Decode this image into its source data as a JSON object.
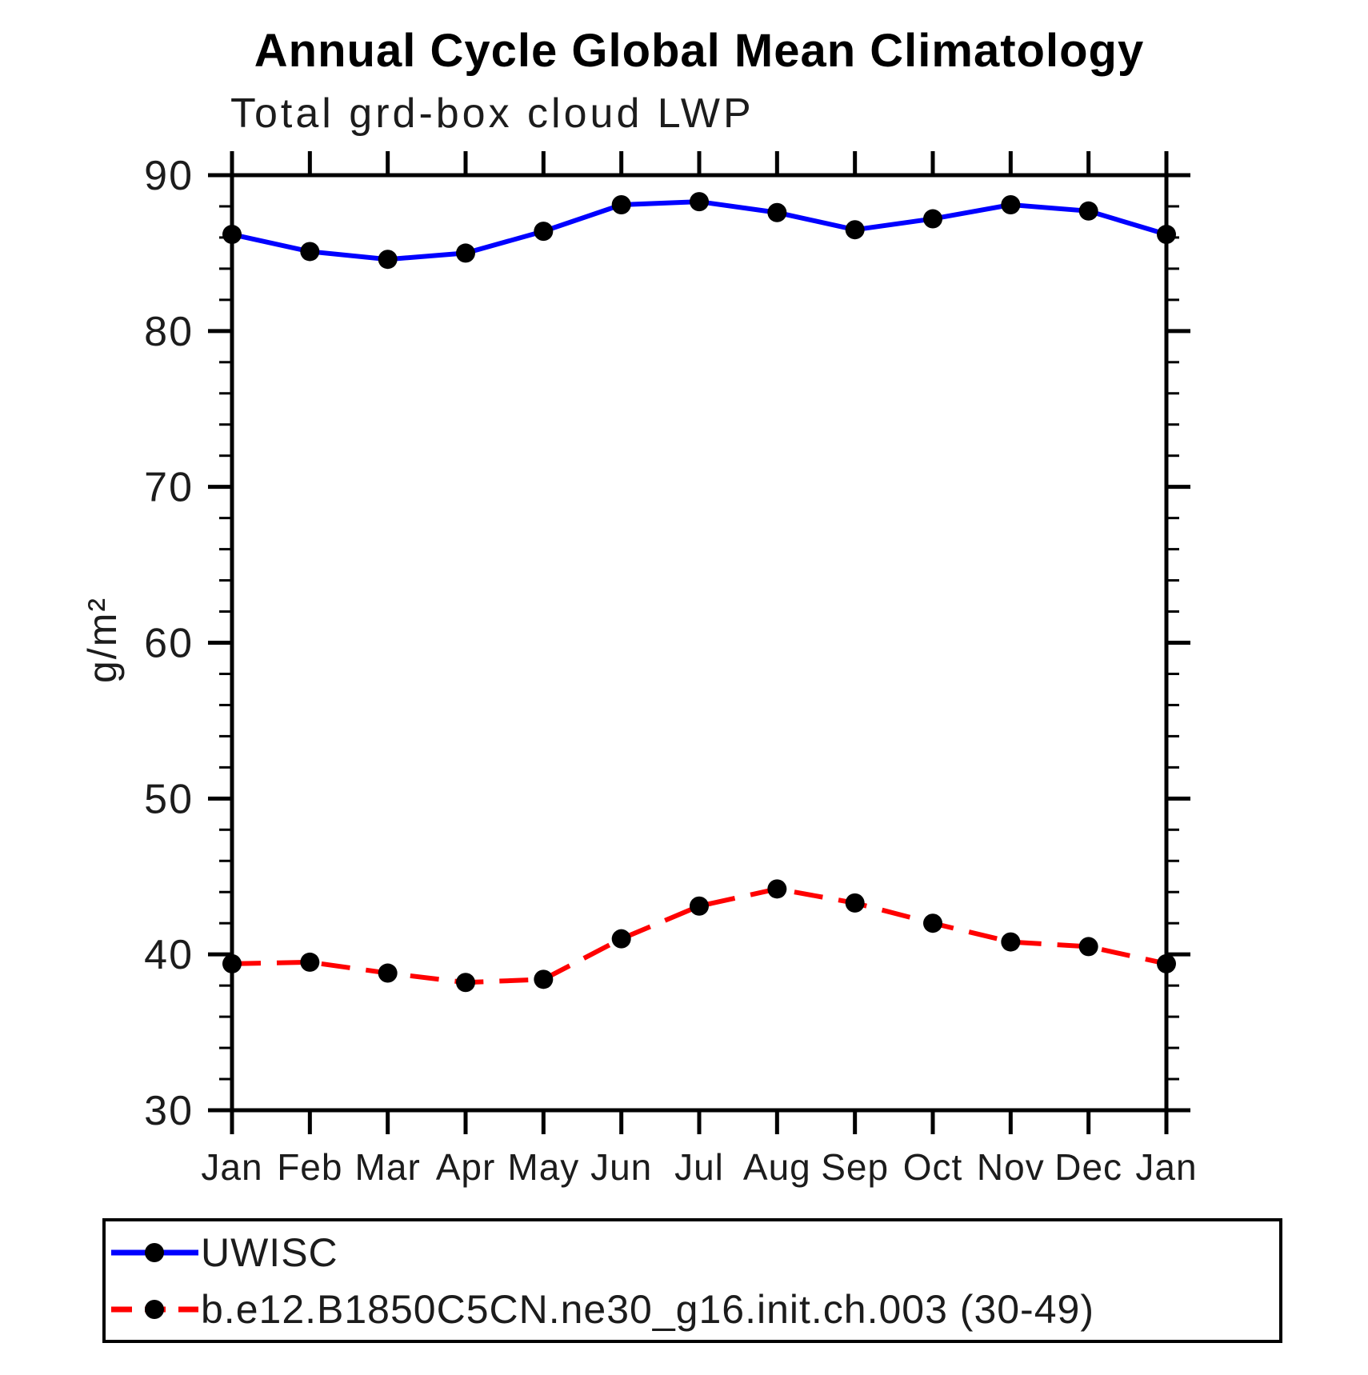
{
  "chart_data": {
    "type": "line",
    "title": "Annual Cycle Global Mean Climatology",
    "subtitle": "Total grd-box cloud LWP",
    "xlabel": "",
    "ylabel": "g/m²",
    "categories": [
      "Jan",
      "Feb",
      "Mar",
      "Apr",
      "May",
      "Jun",
      "Jul",
      "Aug",
      "Sep",
      "Oct",
      "Nov",
      "Dec",
      "Jan"
    ],
    "ylim": [
      30,
      90
    ],
    "y_major_step": 10,
    "y_minor_step": 2,
    "y_tick_labels": [
      "30",
      "40",
      "50",
      "60",
      "70",
      "80",
      "90"
    ],
    "grid": "off",
    "legend_position": "bottom",
    "series": [
      {
        "name": "UWISC",
        "color": "#0000ff",
        "style": "solid",
        "marker": "circle",
        "marker_color": "#000000",
        "values": [
          86.2,
          85.1,
          84.6,
          85.0,
          86.4,
          88.1,
          88.3,
          87.6,
          86.5,
          87.2,
          88.1,
          87.7,
          86.2
        ]
      },
      {
        "name": "b.e12.B1850C5CN.ne30_g16.init.ch.003 (30-49)",
        "color": "#ff0000",
        "style": "dashed",
        "marker": "circle",
        "marker_color": "#000000",
        "values": [
          39.4,
          39.5,
          38.8,
          38.2,
          38.4,
          41.0,
          43.1,
          44.2,
          43.3,
          42.0,
          40.8,
          40.5,
          39.4
        ]
      }
    ]
  }
}
